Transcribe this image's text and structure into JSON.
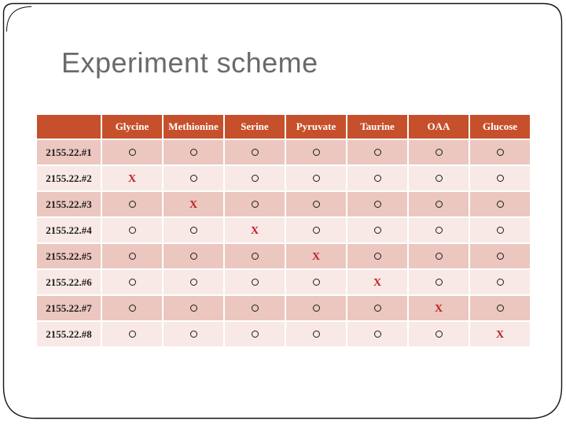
{
  "slide": {
    "title": "Experiment scheme"
  },
  "table": {
    "columns": [
      "",
      "Glycine",
      "Methionine",
      "Serine",
      "Pyruvate",
      "Taurine",
      "OAA",
      "Glucose"
    ],
    "rows": [
      {
        "label": "2155.22.#1",
        "marks": [
          "O",
          "O",
          "O",
          "O",
          "O",
          "O",
          "O"
        ]
      },
      {
        "label": "2155.22.#2",
        "marks": [
          "X",
          "O",
          "O",
          "O",
          "O",
          "O",
          "O"
        ]
      },
      {
        "label": "2155.22.#3",
        "marks": [
          "O",
          "X",
          "O",
          "O",
          "O",
          "O",
          "O"
        ]
      },
      {
        "label": "2155.22.#4",
        "marks": [
          "O",
          "O",
          "X",
          "O",
          "O",
          "O",
          "O"
        ]
      },
      {
        "label": "2155.22.#5",
        "marks": [
          "O",
          "O",
          "O",
          "X",
          "O",
          "O",
          "O"
        ]
      },
      {
        "label": "2155.22.#6",
        "marks": [
          "O",
          "O",
          "O",
          "O",
          "X",
          "O",
          "O"
        ]
      },
      {
        "label": "2155.22.#7",
        "marks": [
          "O",
          "O",
          "O",
          "O",
          "O",
          "X",
          "O"
        ]
      },
      {
        "label": "2155.22.#8",
        "marks": [
          "O",
          "O",
          "O",
          "O",
          "O",
          "O",
          "X"
        ]
      }
    ]
  },
  "colors": {
    "header_bg": "#c6502b",
    "row_odd_bg": "#ebc7bf",
    "row_even_bg": "#f8e9e6",
    "x_mark": "#be2026",
    "title": "#6a6a6a",
    "frame": "#141414"
  }
}
